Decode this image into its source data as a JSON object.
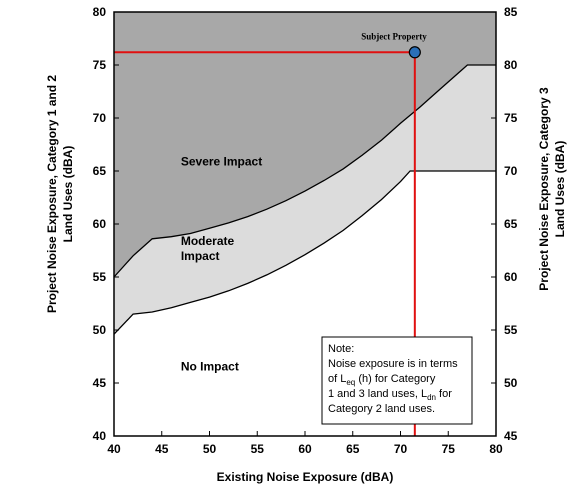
{
  "chart_data": {
    "type": "area",
    "xlabel": "Existing Noise Exposure (dBA)",
    "ylabel_left": "Project Noise Exposure, Category 1 and 2 Land Uses (dBA)",
    "ylabel_left_lines": [
      "Project Noise Exposure, Category 1 and 2",
      "Land Uses (dBA)"
    ],
    "ylabel_right": "Project Noise Exposure, Category 3 Land Uses (dBA)",
    "ylabel_right_lines": [
      "Project Noise Exposure, Category 3",
      "Land Uses (dBA)"
    ],
    "xlim": [
      40,
      80
    ],
    "ylim_left": [
      40,
      80
    ],
    "ylim_right": [
      45,
      85
    ],
    "xticks": [
      40,
      45,
      50,
      55,
      60,
      65,
      70,
      75,
      80
    ],
    "yticks_left": [
      40,
      45,
      50,
      55,
      60,
      65,
      70,
      75,
      80
    ],
    "yticks_right": [
      45,
      50,
      55,
      60,
      65,
      70,
      75,
      80,
      85
    ],
    "grid": false,
    "regions": [
      {
        "name": "Severe Impact",
        "label_lines": [
          "Severe Impact"
        ],
        "color": "#a8a8a8"
      },
      {
        "name": "Moderate Impact",
        "label_lines": [
          "Moderate",
          "Impact"
        ],
        "color": "#dcdcdc"
      },
      {
        "name": "No Impact",
        "label_lines": [
          "No Impact"
        ],
        "color": "#ffffff"
      }
    ],
    "curves": {
      "severe_threshold": {
        "x": [
          40,
          42,
          44,
          46,
          48,
          50,
          52,
          54,
          56,
          58,
          60,
          62,
          64,
          66,
          68,
          70,
          72,
          74,
          76,
          77,
          80
        ],
        "y": [
          55.0,
          57.0,
          58.6,
          58.8,
          59.1,
          59.6,
          60.1,
          60.7,
          61.4,
          62.2,
          63.1,
          64.1,
          65.2,
          66.5,
          67.9,
          69.5,
          71.0,
          72.6,
          74.2,
          75.0,
          75.0
        ]
      },
      "moderate_threshold": {
        "x": [
          40,
          42,
          44,
          46,
          48,
          50,
          52,
          54,
          56,
          58,
          60,
          62,
          64,
          66,
          68,
          70,
          71,
          80
        ],
        "y": [
          49.6,
          51.5,
          51.7,
          52.1,
          52.6,
          53.1,
          53.7,
          54.4,
          55.2,
          56.1,
          57.1,
          58.2,
          59.4,
          60.8,
          62.3,
          64.0,
          65.0,
          65.0
        ]
      }
    },
    "subject_property": {
      "label": "Subject Property",
      "x": 71.5,
      "y": 76.2,
      "color": "#2a6fb8",
      "line_color": "#e01010"
    },
    "note": {
      "title": "Note:",
      "line1": "Noise exposure is in terms",
      "line2_pre": "of L",
      "line2_sub": "eq",
      "line2_post": " (h) for Category",
      "line3": "1 and 3 land uses, L",
      "line3_sub": "dn",
      "line3_post": " for",
      "line4": "Category 2 land uses."
    }
  }
}
